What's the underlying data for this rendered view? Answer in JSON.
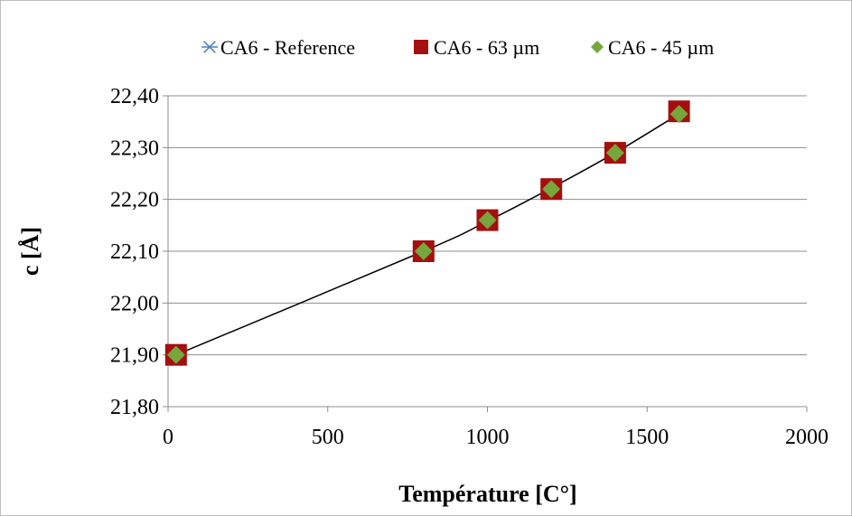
{
  "chart_data": {
    "type": "scatter",
    "title": "",
    "xlabel": "Température [C°]",
    "ylabel": "c [Å]",
    "xlim": [
      0,
      2000
    ],
    "ylim": [
      21.8,
      22.4
    ],
    "xticks": [
      0,
      500,
      1000,
      1500,
      2000
    ],
    "xtick_labels": [
      "0",
      "500",
      "1000",
      "1500",
      "2000"
    ],
    "yticks": [
      21.8,
      21.9,
      22.0,
      22.1,
      22.2,
      22.3,
      22.4
    ],
    "ytick_labels": [
      "21,80",
      "21,90",
      "22,00",
      "22,10",
      "22,20",
      "22,30",
      "22,40"
    ],
    "grid": "horizontal",
    "legend_position": "top",
    "series": [
      {
        "name": "CA6 - Reference",
        "marker": "asterisk",
        "color": "#4f81bd",
        "x": [
          25,
          800,
          1000,
          1200,
          1400,
          1600
        ],
        "y": [
          21.89,
          22.09,
          22.15,
          22.21,
          22.28,
          22.36
        ]
      },
      {
        "name": "CA6 - 63 µm",
        "marker": "square",
        "color": "#a50f0f",
        "x": [
          25,
          800,
          1000,
          1200,
          1400,
          1600
        ],
        "y": [
          21.9,
          22.1,
          22.16,
          22.22,
          22.29,
          22.37
        ]
      },
      {
        "name": "CA6 - 45 µm",
        "marker": "diamond",
        "color": "#76a63c",
        "x": [
          25,
          800,
          1000,
          1200,
          1400,
          1600
        ],
        "y": [
          21.9,
          22.1,
          22.16,
          22.22,
          22.29,
          22.365
        ]
      }
    ],
    "trendline": {
      "color": "#000000",
      "x": [
        25,
        800,
        1000,
        1200,
        1400,
        1600
      ],
      "y": [
        21.9,
        22.1,
        22.158,
        22.222,
        22.29,
        22.365
      ]
    }
  }
}
